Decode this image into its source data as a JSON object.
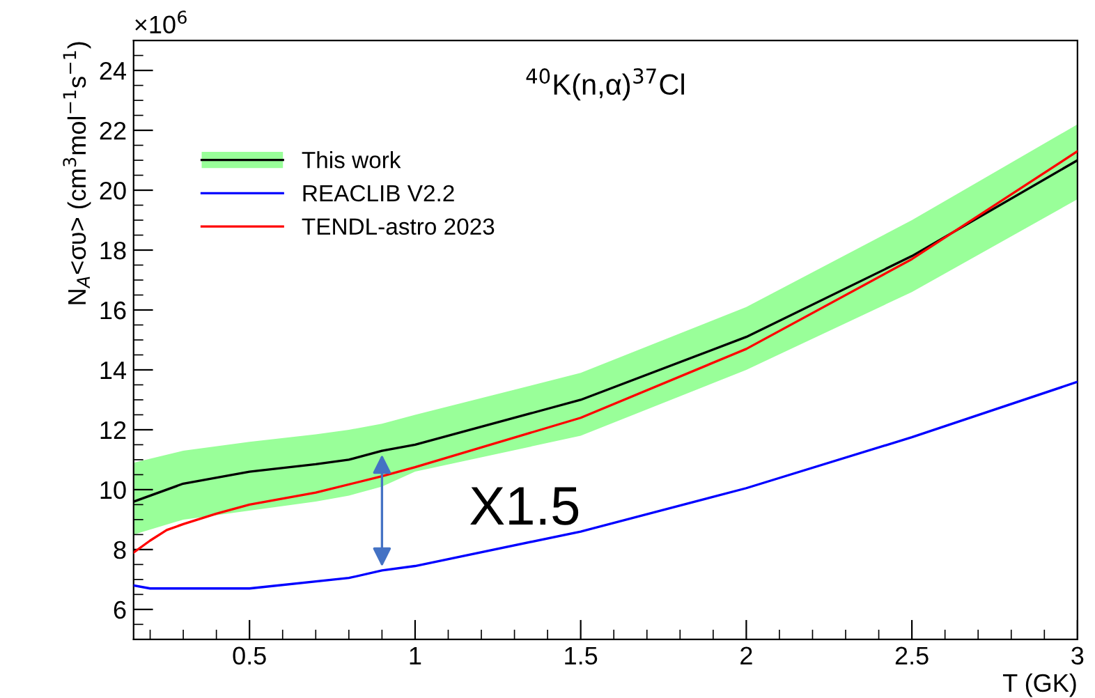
{
  "chart_data": {
    "type": "line",
    "title": "$^{40}$K(n,α)$^{37}$Cl",
    "xlabel": "T (GK)",
    "ylabel": "N$_{A}$<συ> (cm$^{3}$mol$^{−1}$s$^{−1}$)",
    "annotations": [
      "×10$^{6}$",
      {
        "text": "X1.5",
        "x": 0.9,
        "y": 11.3
      }
    ],
    "xlim": [
      0.15,
      3
    ],
    "xticks": [
      0.5,
      1,
      1.5,
      2,
      2.5,
      3
    ],
    "ylim": [
      5,
      25
    ],
    "yticks": [
      6,
      8,
      10,
      12,
      14,
      16,
      18,
      20,
      22,
      24
    ],
    "grid": false,
    "legend": "top left",
    "marker": "none",
    "line_style": "solid",
    "series": [
      {
        "name": "This work",
        "color": "#000000",
        "x": [
          0.15,
          0.3,
          0.5,
          0.7,
          0.8,
          0.9,
          1.0,
          1.5,
          2,
          2.5,
          3
        ],
        "values": [
          9.6,
          10.2,
          10.6,
          10.85,
          11.0,
          11.3,
          11.5,
          13.0,
          15.1,
          17.8,
          21.0
        ],
        "lower": [
          8.5,
          9.0,
          9.3,
          9.6,
          9.8,
          10.1,
          10.6,
          11.8,
          14.0,
          16.6,
          19.7
        ],
        "upper": [
          10.9,
          11.3,
          11.6,
          11.85,
          12.0,
          12.2,
          12.5,
          13.9,
          16.1,
          19.0,
          22.2
        ]
      },
      {
        "name": "REACLIB V2.2",
        "color": "#0000ff",
        "x": [
          0.15,
          0.2,
          0.5,
          0.8,
          0.9,
          1.0,
          1.5,
          2,
          2.5,
          3
        ],
        "values": [
          6.8,
          6.7,
          6.7,
          7.05,
          7.3,
          7.45,
          8.6,
          10.05,
          11.75,
          13.6
        ]
      },
      {
        "name": "TENDL-astro 2023",
        "color": "#ff0000",
        "x": [
          0.15,
          0.2,
          0.25,
          0.3,
          0.4,
          0.5,
          0.7,
          0.9,
          1.0,
          1.5,
          2,
          2.5,
          3
        ],
        "values": [
          7.9,
          8.3,
          8.65,
          8.85,
          9.2,
          9.5,
          9.9,
          10.45,
          10.75,
          12.4,
          14.7,
          17.7,
          21.3
        ]
      }
    ]
  }
}
